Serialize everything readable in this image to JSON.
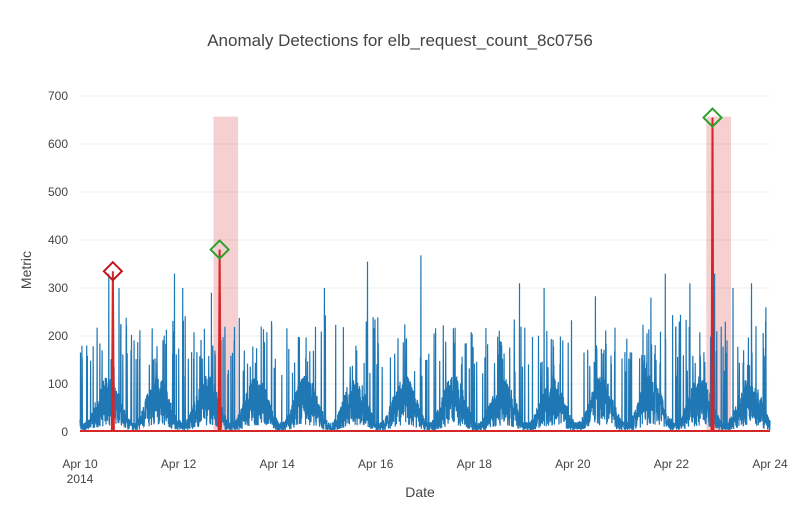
{
  "chart_data": {
    "type": "line",
    "title": "Anomaly Detections for elb_request_count_8c0756",
    "xlabel": "Date",
    "ylabel": "Metric",
    "x_start": "2014-04-10",
    "x_end": "2014-04-24",
    "xlim": [
      "2014-04-10",
      "2014-04-24"
    ],
    "ylim": [
      0,
      700
    ],
    "y_ticks": [
      0,
      100,
      200,
      300,
      400,
      500,
      600,
      700
    ],
    "x_ticks": [
      {
        "date": "2014-04-10",
        "label": "Apr 10",
        "sublabel": "2014"
      },
      {
        "date": "2014-04-12",
        "label": "Apr 12",
        "sublabel": ""
      },
      {
        "date": "2014-04-14",
        "label": "Apr 14",
        "sublabel": ""
      },
      {
        "date": "2014-04-16",
        "label": "Apr 16",
        "sublabel": ""
      },
      {
        "date": "2014-04-18",
        "label": "Apr 18",
        "sublabel": ""
      },
      {
        "date": "2014-04-20",
        "label": "Apr 20",
        "sublabel": ""
      },
      {
        "date": "2014-04-22",
        "label": "Apr 22",
        "sublabel": ""
      },
      {
        "date": "2014-04-24",
        "label": "Apr 24",
        "sublabel": ""
      }
    ],
    "grid": true,
    "series": [
      {
        "color": "#1f77b4",
        "sample_interval_minutes": 5,
        "typical_range": [
          5,
          180
        ],
        "spikes": [
          {
            "x": "2014-04-10T14:00",
            "y": 330
          },
          {
            "x": "2014-04-10T19:00",
            "y": 300
          },
          {
            "x": "2014-04-11T22:00",
            "y": 330
          },
          {
            "x": "2014-04-12T02:00",
            "y": 300
          },
          {
            "x": "2014-04-12T16:00",
            "y": 290
          },
          {
            "x": "2014-04-12T20:00",
            "y": 380
          },
          {
            "x": "2014-04-14T23:00",
            "y": 300
          },
          {
            "x": "2014-04-15T20:00",
            "y": 355
          },
          {
            "x": "2014-04-16T22:00",
            "y": 368
          },
          {
            "x": "2014-04-18T22:00",
            "y": 310
          },
          {
            "x": "2014-04-19T10:00",
            "y": 300
          },
          {
            "x": "2014-04-20T11:00",
            "y": 283
          },
          {
            "x": "2014-04-21T14:00",
            "y": 280
          },
          {
            "x": "2014-04-21T21:00",
            "y": 330
          },
          {
            "x": "2014-04-22T09:00",
            "y": 310
          },
          {
            "x": "2014-04-22T20:00",
            "y": 655
          },
          {
            "x": "2014-04-22T21:00",
            "y": 330
          },
          {
            "x": "2014-04-23T06:00",
            "y": 300
          },
          {
            "x": "2014-04-23T15:00",
            "y": 310
          },
          {
            "x": "2014-04-23T22:00",
            "y": 260
          }
        ]
      },
      {
        "color": "#d62728",
        "points": [
          {
            "x": "2014-04-10T16:00",
            "y": 335
          },
          {
            "x": "2014-04-12T20:00",
            "y": 380
          },
          {
            "x": "2014-04-22T20:00",
            "y": 655
          }
        ]
      }
    ],
    "anomaly_windows": [
      {
        "start": "2014-04-12T17:00",
        "end": "2014-04-13T05:00",
        "color": "#d62728"
      },
      {
        "start": "2014-04-22T17:00",
        "end": "2014-04-23T05:00",
        "color": "#d62728"
      }
    ],
    "markers": [
      {
        "x": "2014-04-10T16:00",
        "y": 335,
        "shape": "diamond-open",
        "color": "#c0171d"
      },
      {
        "x": "2014-04-12T20:00",
        "y": 380,
        "shape": "diamond-open",
        "color": "#2ca02c"
      },
      {
        "x": "2014-04-22T20:00",
        "y": 655,
        "shape": "diamond-open",
        "color": "#2ca02c"
      }
    ]
  }
}
